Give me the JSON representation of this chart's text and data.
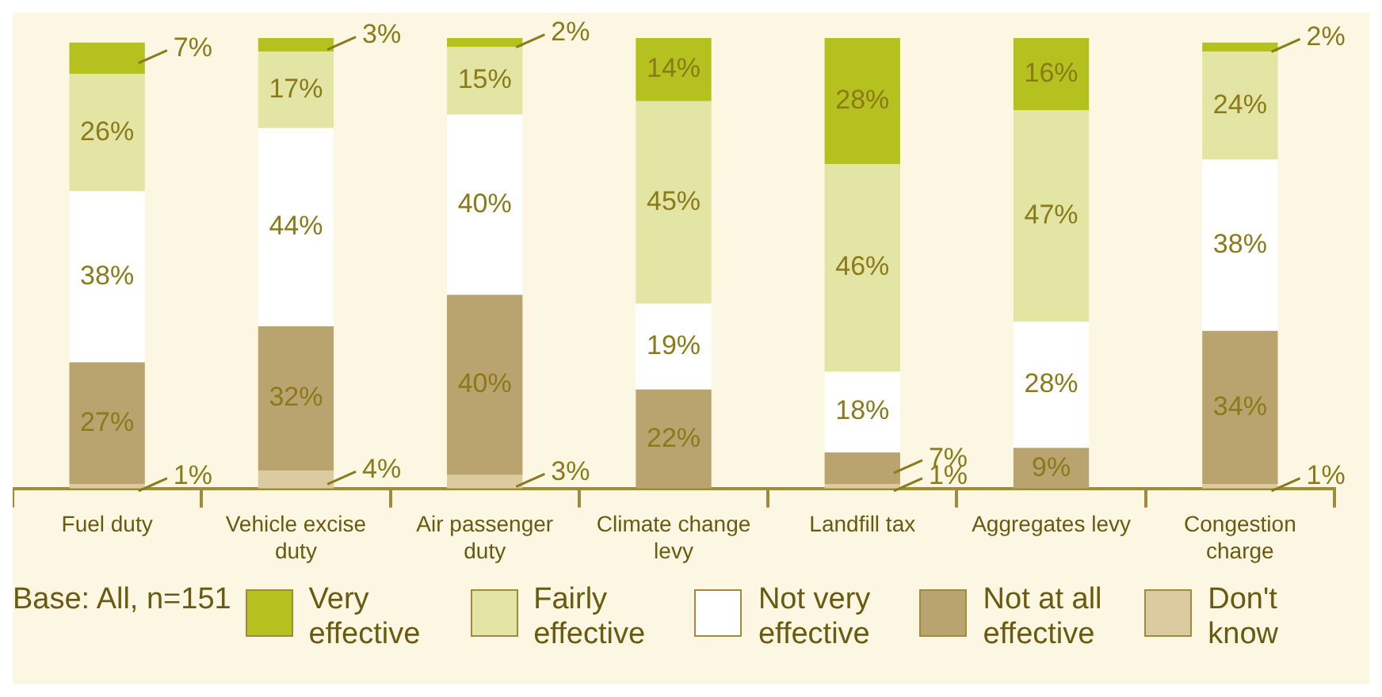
{
  "chart_data": {
    "type": "bar",
    "stacked": true,
    "legend": "bottom",
    "categories": [
      "Fuel duty",
      "Vehicle excise duty",
      "Air passenger duty",
      "Climate change levy",
      "Landfill tax",
      "Aggregates levy",
      "Congestion charge"
    ],
    "series": [
      {
        "name": "Don't know",
        "color": "#dccaa0",
        "values": [
          1,
          4,
          3,
          null,
          1,
          null,
          1
        ],
        "value_labels": [
          "1%",
          "4%",
          "3%",
          null,
          "1%",
          null,
          "1%"
        ]
      },
      {
        "name": "Not at all effective",
        "color": "#b9a36f",
        "values": [
          27,
          32,
          40,
          22,
          7,
          9,
          34
        ],
        "value_labels": [
          "27%",
          "32%",
          "40%",
          "22%",
          "7%",
          "9%",
          "34%"
        ]
      },
      {
        "name": "Not very effective",
        "color": "#ffffff",
        "values": [
          38,
          44,
          40,
          19,
          18,
          28,
          38
        ],
        "value_labels": [
          "38%",
          "44%",
          "40%",
          "19%",
          "18%",
          "28%",
          "38%"
        ]
      },
      {
        "name": "Fairly effective",
        "color": "#e3e5a5",
        "values": [
          26,
          17,
          15,
          45,
          46,
          47,
          24
        ],
        "value_labels": [
          "26%",
          "17%",
          "15%",
          "45%",
          "46%",
          "47%",
          "24%"
        ]
      },
      {
        "name": "Very effective",
        "color": "#b5c11e",
        "values": [
          7,
          3,
          2,
          14,
          28,
          16,
          2
        ],
        "value_labels": [
          "7%",
          "3%",
          "2%",
          "14%",
          "28%",
          "16%",
          "2%"
        ]
      }
    ],
    "annotations": [
      "Base: All, n=151"
    ]
  }
}
